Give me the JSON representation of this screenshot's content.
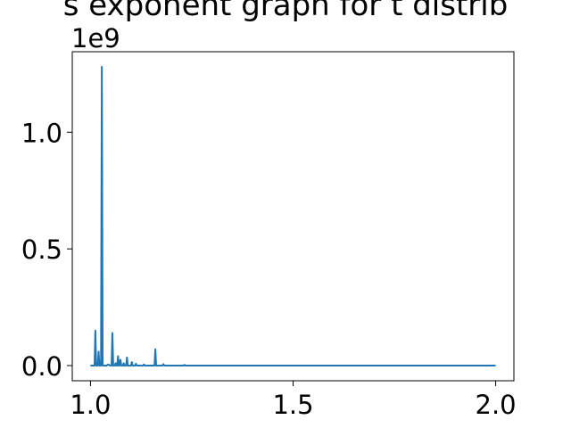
{
  "chart_data": {
    "type": "line",
    "title": "s exponent graph for t distrib",
    "y_offset_label": "1e9",
    "xlim": [
      0.955,
      2.045
    ],
    "ylim": [
      -0.065,
      1.345
    ],
    "x_ticks": [
      {
        "value": 1.0,
        "label": "1.0"
      },
      {
        "value": 1.5,
        "label": "1.5"
      },
      {
        "value": 2.0,
        "label": "2.0"
      }
    ],
    "y_ticks": [
      {
        "value": 0.0,
        "label": "0.0"
      },
      {
        "value": 0.5,
        "label": "0.5"
      },
      {
        "value": 1.0,
        "label": "1.0"
      }
    ],
    "grid": false,
    "series": [
      {
        "color": "#1f77b4",
        "points": [
          [
            1.0,
            0.0
          ],
          [
            1.01,
            0.0
          ],
          [
            1.012,
            0.15
          ],
          [
            1.014,
            0.0
          ],
          [
            1.018,
            0.0
          ],
          [
            1.02,
            0.06
          ],
          [
            1.022,
            0.0
          ],
          [
            1.026,
            0.0
          ],
          [
            1.028,
            1.28
          ],
          [
            1.03,
            0.0
          ],
          [
            1.04,
            0.0
          ],
          [
            1.044,
            0.005
          ],
          [
            1.048,
            0.0
          ],
          [
            1.052,
            0.0
          ],
          [
            1.054,
            0.14
          ],
          [
            1.056,
            0.0
          ],
          [
            1.06,
            0.0
          ],
          [
            1.062,
            0.01
          ],
          [
            1.064,
            0.0
          ],
          [
            1.066,
            0.0
          ],
          [
            1.068,
            0.04
          ],
          [
            1.07,
            0.0
          ],
          [
            1.072,
            0.0
          ],
          [
            1.074,
            0.025
          ],
          [
            1.076,
            0.0
          ],
          [
            1.08,
            0.0
          ],
          [
            1.082,
            0.01
          ],
          [
            1.084,
            0.0
          ],
          [
            1.088,
            0.0
          ],
          [
            1.09,
            0.035
          ],
          [
            1.092,
            0.0
          ],
          [
            1.1,
            0.0
          ],
          [
            1.102,
            0.015
          ],
          [
            1.104,
            0.0
          ],
          [
            1.11,
            0.0
          ],
          [
            1.112,
            0.008
          ],
          [
            1.114,
            0.0
          ],
          [
            1.13,
            0.0
          ],
          [
            1.132,
            0.005
          ],
          [
            1.134,
            0.0
          ],
          [
            1.158,
            0.0
          ],
          [
            1.16,
            0.07
          ],
          [
            1.162,
            0.0
          ],
          [
            1.178,
            0.0
          ],
          [
            1.18,
            0.006
          ],
          [
            1.182,
            0.0
          ],
          [
            1.23,
            0.0
          ],
          [
            1.232,
            0.003
          ],
          [
            1.234,
            0.0
          ],
          [
            2.0,
            0.0
          ]
        ]
      }
    ]
  }
}
